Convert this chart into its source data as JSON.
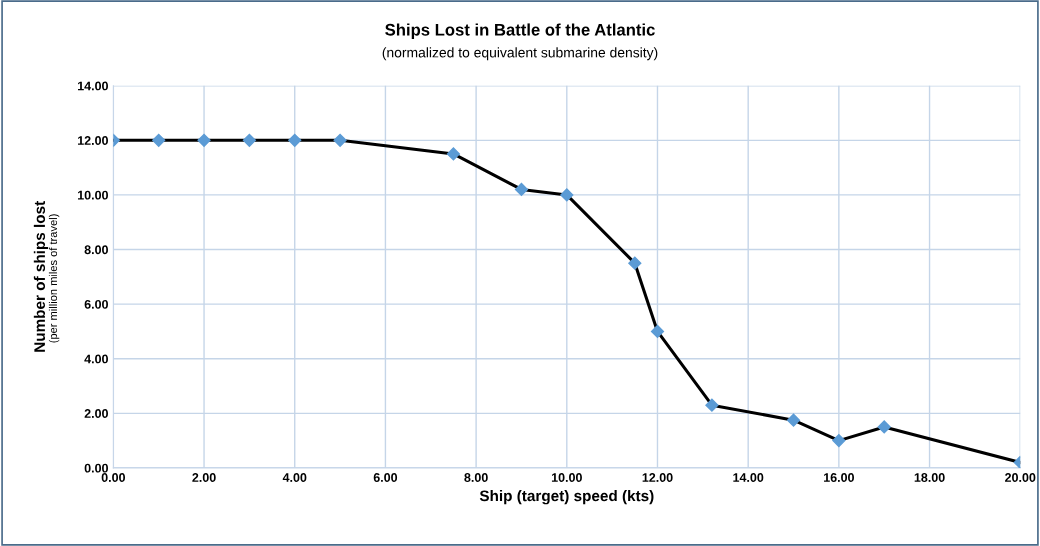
{
  "chart_data": {
    "type": "line",
    "title": "Ships Lost in Battle of the Atlantic",
    "subtitle": "(normalized to equivalent submarine density)",
    "xlabel": "Ship (target) speed (kts)",
    "ylabel": "Number of ships lost",
    "annotations": [
      "(per million miles of travel)"
    ],
    "x": [
      0,
      1,
      2,
      3,
      4,
      5,
      7.5,
      9,
      10,
      11.5,
      12,
      13.2,
      15,
      16,
      17,
      20
    ],
    "series": [
      {
        "color": "#5b9bd5",
        "values": [
          12,
          12,
          12,
          12,
          12,
          12,
          11.5,
          10.2,
          10,
          7.5,
          5,
          2.3,
          1.75,
          1.0,
          1.5,
          0.2
        ]
      }
    ],
    "xlim": [
      0,
      20
    ],
    "ylim": [
      0,
      14
    ],
    "xticks": [
      {
        "value": 0,
        "label": "0.00"
      },
      {
        "value": 2,
        "label": "2.00"
      },
      {
        "value": 4,
        "label": "4.00"
      },
      {
        "value": 6,
        "label": "6.00"
      },
      {
        "value": 8,
        "label": "8.00"
      },
      {
        "value": 10,
        "label": "10.00"
      },
      {
        "value": 12,
        "label": "12.00"
      },
      {
        "value": 14,
        "label": "14.00"
      },
      {
        "value": 16,
        "label": "16.00"
      },
      {
        "value": 18,
        "label": "18.00"
      },
      {
        "value": 20,
        "label": "20.00"
      }
    ],
    "yticks": [
      {
        "value": 0,
        "label": "0.00"
      },
      {
        "value": 2,
        "label": "2.00"
      },
      {
        "value": 4,
        "label": "4.00"
      },
      {
        "value": 6,
        "label": "6.00"
      },
      {
        "value": 8,
        "label": "8.00"
      },
      {
        "value": 10,
        "label": "10.00"
      },
      {
        "value": 12,
        "label": "12.00"
      },
      {
        "value": 14,
        "label": "14.00"
      }
    ],
    "grid": true,
    "marker": "diamond",
    "line_style": "solid"
  }
}
